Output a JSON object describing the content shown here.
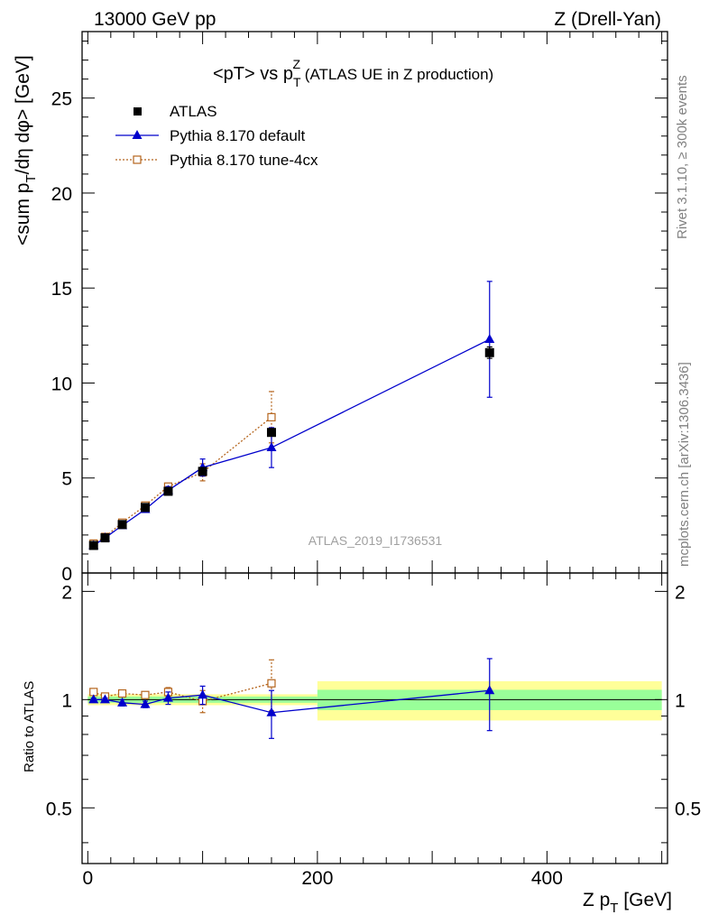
{
  "header": {
    "beam": "13000 GeV pp",
    "process": "Z (Drell-Yan)"
  },
  "side_labels": {
    "rivet": "Rivet 3.1.10, ≥ 300k events",
    "mcplots": "mcplots.cern.ch [arXiv:1306.3436]"
  },
  "colors": {
    "data": "#000000",
    "default": "#0000cc",
    "tune": "#b5651d",
    "band_inner": "#99ff99",
    "band_outer": "#ffff99"
  },
  "chart_data": [
    {
      "id": "main",
      "type": "scatter",
      "title_parts": {
        "a": "<pT> vs p",
        "sup": "Z",
        "sub": "T",
        "b": " (ATLAS UE in Z production)"
      },
      "watermark": "ATLAS_2019_I1736531",
      "ylabel_parts": {
        "a": "<sum p",
        "sub": "T",
        "b": "/dη dφ> [GeV]"
      },
      "xlim": [
        -5,
        505
      ],
      "ylim": [
        0,
        28.5
      ],
      "yticks": [
        0,
        5,
        10,
        15,
        20,
        25
      ],
      "ytick_labels": [
        "0",
        "5",
        "10",
        "15",
        "20",
        "25"
      ],
      "legend": {
        "position": "top-left",
        "entries": [
          "ATLAS",
          "Pythia 8.170 default",
          "Pythia 8.170 tune-4cx"
        ]
      },
      "series": [
        {
          "name": "ATLAS",
          "style": "square",
          "x": [
            5,
            15,
            30,
            50,
            70,
            100,
            160,
            350
          ],
          "y": [
            1.45,
            1.85,
            2.55,
            3.45,
            4.3,
            5.35,
            7.4,
            11.6
          ],
          "err": [
            0.05,
            0.05,
            0.05,
            0.05,
            0.05,
            0.1,
            0.2,
            0.3
          ]
        },
        {
          "name": "Pythia 8.170 default",
          "style": "triangle",
          "x": [
            5,
            15,
            30,
            50,
            70,
            100,
            160,
            350
          ],
          "y": [
            1.45,
            1.85,
            2.5,
            3.35,
            4.35,
            5.55,
            6.6,
            12.3
          ],
          "err": [
            0.05,
            0.05,
            0.1,
            0.15,
            0.2,
            0.45,
            1.05,
            3.05
          ]
        },
        {
          "name": "Pythia 8.170 tune-4cx",
          "style": "open-square",
          "x": [
            5,
            15,
            30,
            50,
            70,
            100,
            160
          ],
          "y": [
            1.55,
            1.9,
            2.65,
            3.55,
            4.55,
            5.3,
            8.2
          ],
          "err": [
            0.05,
            0.05,
            0.05,
            0.1,
            0.15,
            0.45,
            1.35
          ]
        }
      ]
    },
    {
      "id": "ratio",
      "type": "scatter",
      "ylabel": "Ratio to ATLAS",
      "xlabel_parts": {
        "a": "Z p",
        "sub": "T",
        "b": " [GeV]"
      },
      "xlim": [
        -5,
        505
      ],
      "ylim": [
        0.35,
        2.25
      ],
      "xticks": [
        0,
        200,
        400
      ],
      "xtick_labels": [
        "0",
        "200",
        "400"
      ],
      "yticks": [
        0.5,
        1,
        2
      ],
      "ytick_labels": [
        "0.5",
        "1",
        "2"
      ],
      "band": [
        {
          "x0": 0,
          "x1": 200,
          "inner": [
            0.98,
            1.02
          ],
          "outer": [
            0.965,
            1.035
          ]
        },
        {
          "x0": 200,
          "x1": 500,
          "inner": [
            0.935,
            1.065
          ],
          "outer": [
            0.875,
            1.125
          ]
        }
      ],
      "series": [
        {
          "name": "Pythia 8.170 default",
          "style": "triangle",
          "x": [
            5,
            15,
            30,
            50,
            70,
            100,
            160,
            350
          ],
          "y": [
            1.0,
            1.0,
            0.98,
            0.97,
            1.01,
            1.03,
            0.92,
            1.06
          ],
          "err": [
            0.01,
            0.01,
            0.02,
            0.02,
            0.04,
            0.06,
            0.14,
            0.24
          ]
        },
        {
          "name": "Pythia 8.170 tune-4cx",
          "style": "open-square",
          "x": [
            5,
            15,
            30,
            50,
            70,
            100,
            160
          ],
          "y": [
            1.05,
            1.02,
            1.04,
            1.03,
            1.05,
            0.99,
            1.11
          ],
          "err": [
            0.01,
            0.01,
            0.01,
            0.02,
            0.03,
            0.07,
            0.18
          ]
        }
      ]
    }
  ]
}
